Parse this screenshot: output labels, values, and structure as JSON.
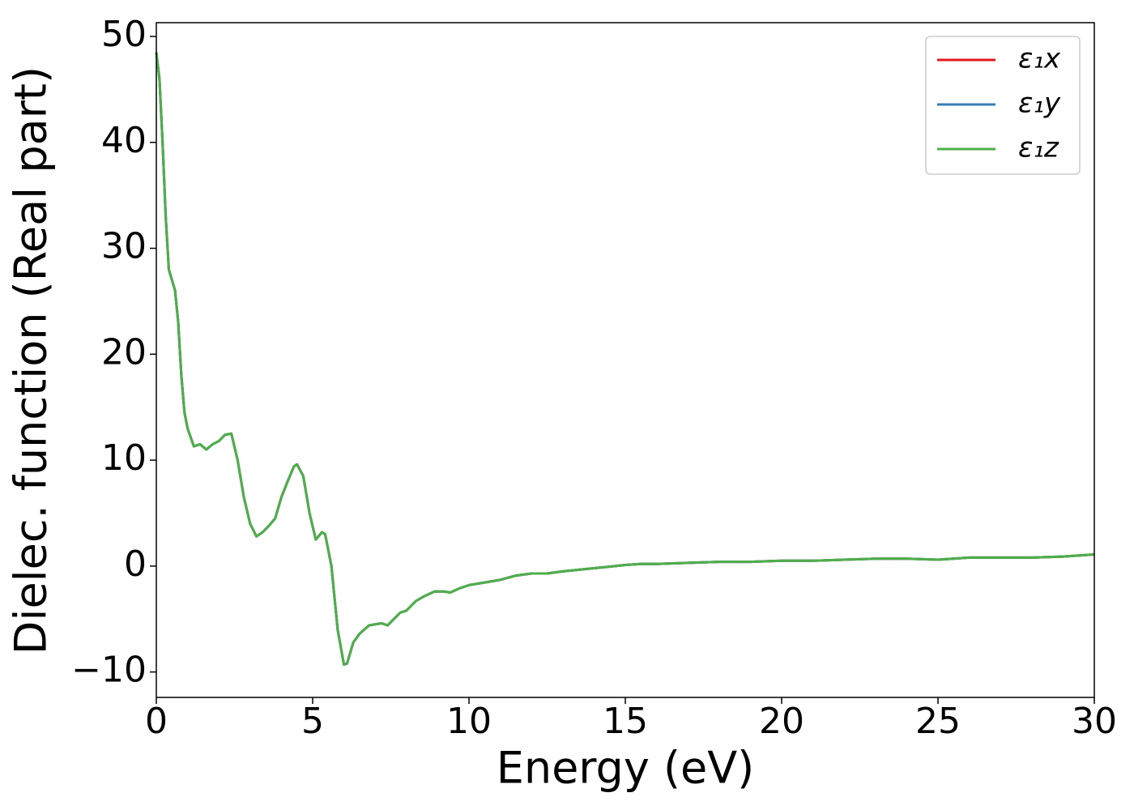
{
  "chart_data": {
    "type": "line",
    "xlabel": "Energy (eV)",
    "ylabel": "Dielec. function (Real part)",
    "x": [
      0,
      0.1,
      0.2,
      0.3,
      0.4,
      0.5,
      0.6,
      0.7,
      0.8,
      0.9,
      1.0,
      1.2,
      1.4,
      1.6,
      1.8,
      2.0,
      2.2,
      2.4,
      2.6,
      2.8,
      3.0,
      3.2,
      3.4,
      3.6,
      3.8,
      4.0,
      4.2,
      4.4,
      4.5,
      4.7,
      4.9,
      5.1,
      5.3,
      5.4,
      5.6,
      5.8,
      6.0,
      6.1,
      6.3,
      6.5,
      6.8,
      7.0,
      7.2,
      7.4,
      7.6,
      7.8,
      8.0,
      8.3,
      8.6,
      8.9,
      9.2,
      9.4,
      9.7,
      10,
      11,
      11.5,
      12,
      12.5,
      13,
      14,
      15,
      15.5,
      16,
      17,
      18,
      19,
      20,
      21,
      22,
      23,
      24,
      25,
      26,
      27,
      28,
      29,
      30
    ],
    "series": [
      {
        "name": "ε₁x",
        "color": "#e41a1c",
        "values": [
          48.5,
          46,
          40,
          33,
          28,
          27,
          26,
          23,
          18,
          14.5,
          13,
          11.3,
          11.5,
          11,
          11.5,
          11.8,
          12.4,
          12.5,
          10,
          6.5,
          4,
          2.8,
          3.2,
          3.8,
          4.5,
          6.5,
          8,
          9.4,
          9.6,
          8.5,
          5,
          2.5,
          3.2,
          3,
          0,
          -6,
          -9.3,
          -9.2,
          -7.2,
          -6.4,
          -5.6,
          -5.5,
          -5.4,
          -5.6,
          -5,
          -4.4,
          -4.2,
          -3.3,
          -2.8,
          -2.4,
          -2.4,
          -2.5,
          -2.1,
          -1.8,
          -1.3,
          -0.9,
          -0.7,
          -0.7,
          -0.5,
          -0.2,
          0.1,
          0.2,
          0.2,
          0.3,
          0.4,
          0.4,
          0.5,
          0.5,
          0.6,
          0.7,
          0.7,
          0.6,
          0.8,
          0.8,
          0.8,
          0.9,
          1.1
        ]
      },
      {
        "name": "ε₁y",
        "color": "#377eb8",
        "values": [
          48.5,
          46,
          40,
          33,
          28,
          27,
          26,
          23,
          18,
          14.5,
          13,
          11.3,
          11.5,
          11,
          11.5,
          11.8,
          12.4,
          12.5,
          10,
          6.5,
          4,
          2.8,
          3.2,
          3.8,
          4.5,
          6.5,
          8,
          9.4,
          9.6,
          8.5,
          5,
          2.5,
          3.2,
          3,
          0,
          -6,
          -9.3,
          -9.2,
          -7.2,
          -6.4,
          -5.6,
          -5.5,
          -5.4,
          -5.6,
          -5,
          -4.4,
          -4.2,
          -3.3,
          -2.8,
          -2.4,
          -2.4,
          -2.5,
          -2.1,
          -1.8,
          -1.3,
          -0.9,
          -0.7,
          -0.7,
          -0.5,
          -0.2,
          0.1,
          0.2,
          0.2,
          0.3,
          0.4,
          0.4,
          0.5,
          0.5,
          0.6,
          0.7,
          0.7,
          0.6,
          0.8,
          0.8,
          0.8,
          0.9,
          1.1
        ]
      },
      {
        "name": "ε₁z",
        "color": "#4daf4a",
        "values": [
          48.5,
          46,
          40,
          33,
          28,
          27,
          26,
          23,
          18,
          14.5,
          13,
          11.3,
          11.5,
          11,
          11.5,
          11.8,
          12.4,
          12.5,
          10,
          6.5,
          4,
          2.8,
          3.2,
          3.8,
          4.5,
          6.5,
          8,
          9.4,
          9.6,
          8.5,
          5,
          2.5,
          3.2,
          3,
          0,
          -6,
          -9.3,
          -9.2,
          -7.2,
          -6.4,
          -5.6,
          -5.5,
          -5.4,
          -5.6,
          -5,
          -4.4,
          -4.2,
          -3.3,
          -2.8,
          -2.4,
          -2.4,
          -2.5,
          -2.1,
          -1.8,
          -1.3,
          -0.9,
          -0.7,
          -0.7,
          -0.5,
          -0.2,
          0.1,
          0.2,
          0.2,
          0.3,
          0.4,
          0.4,
          0.5,
          0.5,
          0.6,
          0.7,
          0.7,
          0.6,
          0.8,
          0.8,
          0.8,
          0.9,
          1.1
        ]
      }
    ],
    "xlim": [
      0,
      30
    ],
    "xticks": [
      0,
      5,
      10,
      15,
      20,
      25,
      30
    ],
    "ylim": [
      -12.4,
      51.3
    ],
    "yticks": [
      {
        "value": -10,
        "label": "−10"
      },
      0,
      10,
      20,
      30,
      40,
      50
    ],
    "legend": "upper right",
    "grid": false
  }
}
